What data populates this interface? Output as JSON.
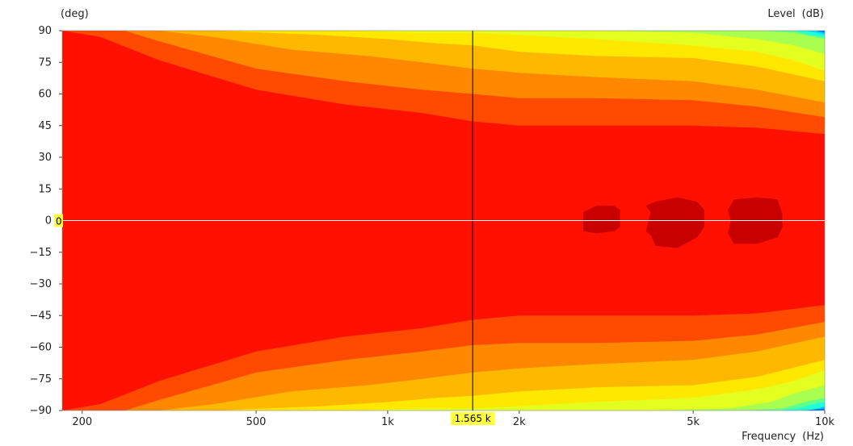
{
  "chart_data": {
    "type": "heatmap",
    "title": "",
    "xlabel": "Frequency",
    "xunit": "(Hz)",
    "ylabel": "",
    "yunit": "(deg)",
    "zlabel": "Level",
    "zunit": "(dB)",
    "x_scale": "log",
    "xlim": [
      180,
      10000
    ],
    "ylim": [
      -90,
      90
    ],
    "x_ticks": [
      {
        "value": 200,
        "label": "200"
      },
      {
        "value": 500,
        "label": "500"
      },
      {
        "value": 1000,
        "label": "1k"
      },
      {
        "value": 2000,
        "label": "2k"
      },
      {
        "value": 5000,
        "label": "5k"
      },
      {
        "value": 10000,
        "label": "10k"
      }
    ],
    "y_ticks": [
      90,
      75,
      60,
      45,
      30,
      15,
      0,
      -15,
      -30,
      -45,
      -60,
      -75,
      -90
    ],
    "cursor": {
      "x": 1565,
      "x_label": "1.565 k",
      "y": 0,
      "y_label": "0"
    },
    "bands_top": [
      {
        "color": "#ff1000",
        "points": [
          [
            180,
            70
          ],
          [
            220,
            60
          ],
          [
            300,
            49
          ],
          [
            500,
            40
          ],
          [
            800,
            37
          ],
          [
            1200,
            35
          ],
          [
            1565,
            34
          ],
          [
            2000,
            32
          ],
          [
            2500,
            32
          ],
          [
            3500,
            32
          ],
          [
            5000,
            32
          ],
          [
            7000,
            30
          ],
          [
            10000,
            24
          ]
        ]
      },
      {
        "color": "#ff4a00",
        "points": [
          [
            180,
            90
          ],
          [
            220,
            87
          ],
          [
            300,
            76
          ],
          [
            500,
            62
          ],
          [
            800,
            55
          ],
          [
            1200,
            51
          ],
          [
            1565,
            47
          ],
          [
            2000,
            45
          ],
          [
            3000,
            45
          ],
          [
            5000,
            45
          ],
          [
            7000,
            44
          ],
          [
            10000,
            41
          ]
        ]
      },
      {
        "color": "#ff8800",
        "points": [
          [
            250,
            90
          ],
          [
            300,
            85
          ],
          [
            500,
            72
          ],
          [
            800,
            66
          ],
          [
            1200,
            62
          ],
          [
            1565,
            60
          ],
          [
            2000,
            58
          ],
          [
            3000,
            58
          ],
          [
            5000,
            57
          ],
          [
            7000,
            54
          ],
          [
            10000,
            49
          ]
        ]
      },
      {
        "color": "#ffb800",
        "points": [
          [
            300,
            90
          ],
          [
            400,
            87
          ],
          [
            600,
            81
          ],
          [
            900,
            78
          ],
          [
            1200,
            75
          ],
          [
            1565,
            72
          ],
          [
            2000,
            70
          ],
          [
            3000,
            68
          ],
          [
            5000,
            66
          ],
          [
            7000,
            62
          ],
          [
            10000,
            56
          ]
        ]
      },
      {
        "color": "#ffe800",
        "points": [
          [
            400,
            90
          ],
          [
            700,
            88
          ],
          [
            1000,
            86
          ],
          [
            1300,
            84
          ],
          [
            1565,
            83
          ],
          [
            2000,
            80
          ],
          [
            3000,
            78
          ],
          [
            5000,
            77
          ],
          [
            7000,
            73
          ],
          [
            10000,
            66
          ]
        ]
      },
      {
        "color": "#e2ff20",
        "points": [
          [
            800,
            90
          ],
          [
            1200,
            89
          ],
          [
            1565,
            89
          ],
          [
            2000,
            88
          ],
          [
            3000,
            86
          ],
          [
            5000,
            83
          ],
          [
            7000,
            80
          ],
          [
            8500,
            76
          ],
          [
            10000,
            71
          ]
        ]
      },
      {
        "color": "#a8ff50",
        "points": [
          [
            1800,
            90
          ],
          [
            3000,
            90
          ],
          [
            5000,
            89
          ],
          [
            7000,
            86
          ],
          [
            8500,
            83
          ],
          [
            10000,
            79
          ]
        ]
      },
      {
        "color": "#60ff90",
        "points": [
          [
            4500,
            90
          ],
          [
            7000,
            90
          ],
          [
            8500,
            89
          ],
          [
            10000,
            86
          ]
        ]
      },
      {
        "color": "#20ffd8",
        "points": [
          [
            7500,
            90
          ],
          [
            8500,
            90
          ],
          [
            9200,
            88
          ],
          [
            10000,
            87
          ]
        ]
      },
      {
        "color": "#00d8ff",
        "points": [
          [
            8300,
            90
          ],
          [
            9000,
            90
          ],
          [
            9600,
            89
          ],
          [
            10000,
            88
          ]
        ]
      },
      {
        "color": "#0070ff",
        "points": [
          [
            9000,
            90
          ],
          [
            9500,
            90
          ],
          [
            10000,
            89
          ]
        ]
      },
      {
        "color": "#0010f0",
        "points": [
          [
            9400,
            90
          ],
          [
            10000,
            90
          ]
        ]
      }
    ],
    "bands_bottom": [
      {
        "color": "#ff1000",
        "points": [
          [
            180,
            -70
          ],
          [
            220,
            -60
          ],
          [
            300,
            -49
          ],
          [
            500,
            -41
          ],
          [
            800,
            -38
          ],
          [
            1200,
            -35
          ],
          [
            1565,
            -33
          ],
          [
            2000,
            -31
          ],
          [
            2500,
            -31
          ],
          [
            3500,
            -31
          ],
          [
            5000,
            -31
          ],
          [
            7000,
            -29
          ],
          [
            10000,
            -23
          ]
        ]
      },
      {
        "color": "#ff4a00",
        "points": [
          [
            180,
            -90
          ],
          [
            220,
            -87
          ],
          [
            300,
            -76
          ],
          [
            500,
            -62
          ],
          [
            800,
            -55
          ],
          [
            1200,
            -51
          ],
          [
            1565,
            -47
          ],
          [
            2000,
            -45
          ],
          [
            3000,
            -45
          ],
          [
            5000,
            -45
          ],
          [
            7000,
            -44
          ],
          [
            10000,
            -40
          ]
        ]
      },
      {
        "color": "#ff8800",
        "points": [
          [
            250,
            -90
          ],
          [
            300,
            -85
          ],
          [
            500,
            -72
          ],
          [
            800,
            -66
          ],
          [
            1200,
            -62
          ],
          [
            1565,
            -59
          ],
          [
            2000,
            -58
          ],
          [
            3000,
            -58
          ],
          [
            5000,
            -57
          ],
          [
            7000,
            -54
          ],
          [
            10000,
            -48
          ]
        ]
      },
      {
        "color": "#ffb800",
        "points": [
          [
            300,
            -90
          ],
          [
            400,
            -87
          ],
          [
            600,
            -81
          ],
          [
            900,
            -78
          ],
          [
            1200,
            -75
          ],
          [
            1565,
            -72
          ],
          [
            2000,
            -70
          ],
          [
            3000,
            -68
          ],
          [
            5000,
            -66
          ],
          [
            7000,
            -62
          ],
          [
            10000,
            -55
          ]
        ]
      },
      {
        "color": "#ffe800",
        "points": [
          [
            400,
            -90
          ],
          [
            700,
            -88
          ],
          [
            1000,
            -86
          ],
          [
            1300,
            -84
          ],
          [
            1565,
            -83
          ],
          [
            2000,
            -81
          ],
          [
            3000,
            -79
          ],
          [
            5000,
            -78
          ],
          [
            7000,
            -74
          ],
          [
            10000,
            -66
          ]
        ]
      },
      {
        "color": "#e2ff20",
        "points": [
          [
            800,
            -90
          ],
          [
            1200,
            -89
          ],
          [
            1565,
            -89
          ],
          [
            2000,
            -88
          ],
          [
            3000,
            -86
          ],
          [
            5000,
            -84
          ],
          [
            7000,
            -80
          ],
          [
            8500,
            -76
          ],
          [
            10000,
            -71
          ]
        ]
      },
      {
        "color": "#a8ff50",
        "points": [
          [
            2400,
            -90
          ],
          [
            4000,
            -90
          ],
          [
            6000,
            -89
          ],
          [
            7500,
            -86
          ],
          [
            8500,
            -82
          ],
          [
            10000,
            -78
          ]
        ]
      },
      {
        "color": "#60ff90",
        "points": [
          [
            6500,
            -90
          ],
          [
            8000,
            -89
          ],
          [
            9000,
            -86
          ],
          [
            10000,
            -84
          ]
        ]
      },
      {
        "color": "#20ffd8",
        "points": [
          [
            7800,
            -90
          ],
          [
            8700,
            -89
          ],
          [
            9400,
            -87
          ],
          [
            10000,
            -86
          ]
        ]
      },
      {
        "color": "#00d8ff",
        "points": [
          [
            8400,
            -90
          ],
          [
            9200,
            -90
          ],
          [
            10000,
            -88
          ]
        ]
      },
      {
        "color": "#0070ff",
        "points": [
          [
            8900,
            -90
          ],
          [
            10000,
            -89
          ]
        ]
      },
      {
        "color": "#0010f0",
        "points": [
          [
            9400,
            -90
          ],
          [
            10000,
            -90
          ]
        ]
      }
    ],
    "peak_color": "#c80000",
    "peak_regions": [
      [
        [
          2800,
          -5
        ],
        [
          3000,
          -6
        ],
        [
          3300,
          -5
        ],
        [
          3400,
          -3
        ],
        [
          3400,
          5
        ],
        [
          3300,
          7
        ],
        [
          3000,
          7
        ],
        [
          2800,
          4
        ]
      ],
      [
        [
          4000,
          -7
        ],
        [
          4100,
          -12
        ],
        [
          4600,
          -13
        ],
        [
          5100,
          -8
        ],
        [
          5300,
          -3
        ],
        [
          5300,
          5
        ],
        [
          5100,
          9
        ],
        [
          4600,
          11
        ],
        [
          4100,
          9
        ],
        [
          3900,
          7
        ],
        [
          4000,
          4
        ],
        [
          3900,
          -5
        ]
      ],
      [
        [
          6000,
          -6
        ],
        [
          6200,
          -11
        ],
        [
          7000,
          -11
        ],
        [
          7800,
          -8
        ],
        [
          8000,
          -3
        ],
        [
          8000,
          3
        ],
        [
          7800,
          10
        ],
        [
          7000,
          11
        ],
        [
          6200,
          10
        ],
        [
          6000,
          5
        ],
        [
          6100,
          0
        ]
      ]
    ]
  }
}
